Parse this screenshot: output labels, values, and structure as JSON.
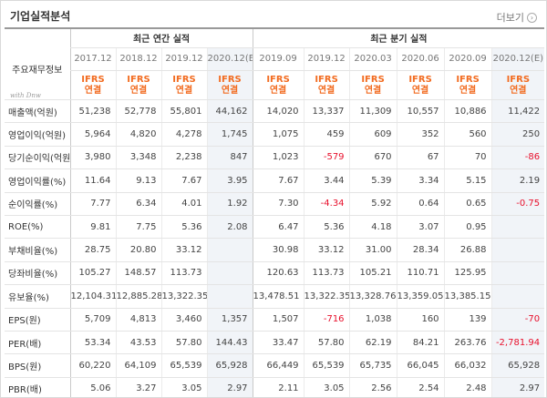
{
  "header": {
    "title": "기업실적분석",
    "more_label": "더보기",
    "more_icon": "chevron-right-icon"
  },
  "table": {
    "corner_label": "주요재무정보",
    "corner_sig": "with Dnw",
    "annual_label": "최근 연간 실적",
    "quarter_label": "최근 분기 실적",
    "periods": [
      "2017.12",
      "2018.12",
      "2019.12",
      "2020.12(E)",
      "2019.09",
      "2019.12",
      "2020.03",
      "2020.06",
      "2020.09",
      "2020.12(E)"
    ],
    "ifrs_top": "IFRS",
    "ifrs_bottom": "연결",
    "rows": [
      {
        "label": "매출액(억원)",
        "values": [
          "51,238",
          "52,778",
          "55,801",
          "44,162",
          "14,020",
          "13,337",
          "11,309",
          "10,557",
          "10,886",
          "11,422"
        ]
      },
      {
        "label": "영업이익(억원)",
        "values": [
          "5,964",
          "4,820",
          "4,278",
          "1,745",
          "1,075",
          "459",
          "609",
          "352",
          "560",
          "250"
        ]
      },
      {
        "label": "당기순이익(억원)",
        "values": [
          "3,980",
          "3,348",
          "2,238",
          "847",
          "1,023",
          "-579",
          "670",
          "67",
          "70",
          "-86"
        ]
      },
      {
        "label": "영업이익률(%)",
        "values": [
          "11.64",
          "9.13",
          "7.67",
          "3.95",
          "7.67",
          "3.44",
          "5.39",
          "3.34",
          "5.15",
          "2.19"
        ]
      },
      {
        "label": "순이익률(%)",
        "values": [
          "7.77",
          "6.34",
          "4.01",
          "1.92",
          "7.30",
          "-4.34",
          "5.92",
          "0.64",
          "0.65",
          "-0.75"
        ]
      },
      {
        "label": "ROE(%)",
        "values": [
          "9.81",
          "7.75",
          "5.36",
          "2.08",
          "6.47",
          "5.36",
          "4.18",
          "3.07",
          "0.95",
          ""
        ]
      },
      {
        "label": "부채비율(%)",
        "values": [
          "28.75",
          "20.80",
          "33.12",
          "",
          "30.98",
          "33.12",
          "31.00",
          "28.34",
          "26.88",
          ""
        ]
      },
      {
        "label": "당좌비율(%)",
        "values": [
          "105.27",
          "148.57",
          "113.73",
          "",
          "120.63",
          "113.73",
          "105.21",
          "110.71",
          "125.95",
          ""
        ]
      },
      {
        "label": "유보율(%)",
        "values": [
          "12,104.31",
          "12,885.28",
          "13,322.35",
          "",
          "13,478.51",
          "13,322.35",
          "13,328.76",
          "13,359.05",
          "13,385.15",
          ""
        ]
      },
      {
        "label": "EPS(원)",
        "values": [
          "5,709",
          "4,813",
          "3,460",
          "1,357",
          "1,507",
          "-716",
          "1,038",
          "160",
          "139",
          "-70"
        ]
      },
      {
        "label": "PER(배)",
        "values": [
          "53.34",
          "43.53",
          "57.80",
          "144.43",
          "33.47",
          "57.80",
          "62.19",
          "84.21",
          "263.76",
          "-2,781.94"
        ]
      },
      {
        "label": "BPS(원)",
        "values": [
          "60,220",
          "64,109",
          "65,539",
          "65,928",
          "66,449",
          "65,539",
          "65,735",
          "66,045",
          "66,032",
          "65,928"
        ]
      },
      {
        "label": "PBR(배)",
        "values": [
          "5.06",
          "3.27",
          "3.05",
          "2.97",
          "2.11",
          "3.05",
          "2.56",
          "2.54",
          "2.48",
          "2.97"
        ]
      }
    ]
  }
}
